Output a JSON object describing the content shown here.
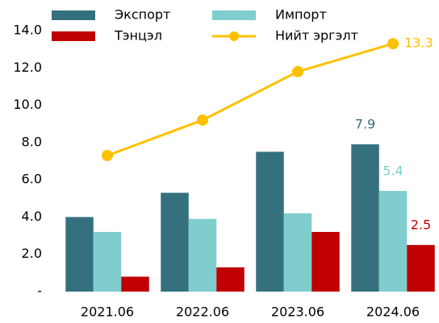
{
  "chart_data": {
    "type": "bar",
    "categories": [
      "2021.06",
      "2022.06",
      "2023.06",
      "2024.06"
    ],
    "series": [
      {
        "name": "Экспорт",
        "color": "#35707e",
        "type": "bar",
        "values": [
          4.0,
          5.3,
          7.5,
          7.9
        ],
        "value_labels": [
          null,
          null,
          null,
          "7.9"
        ]
      },
      {
        "name": "Импорт",
        "color": "#7fcdcd",
        "type": "bar",
        "values": [
          3.2,
          3.9,
          4.2,
          5.4
        ],
        "value_labels": [
          null,
          null,
          null,
          "5.4"
        ]
      },
      {
        "name": "Тэнцэл",
        "color": "#c00000",
        "type": "bar",
        "values": [
          0.8,
          1.3,
          3.2,
          2.5
        ],
        "value_labels": [
          null,
          null,
          null,
          "2.5"
        ]
      },
      {
        "name": "Нийт эргэлт",
        "color": "#ffc000",
        "type": "line",
        "values": [
          7.3,
          9.2,
          11.8,
          13.3
        ],
        "value_labels": [
          null,
          null,
          null,
          "13.3"
        ]
      }
    ],
    "ylim": [
      0,
      14
    ],
    "yticks": [
      {
        "value": 0,
        "label": "-"
      },
      {
        "value": 2,
        "label": "2.0"
      },
      {
        "value": 4,
        "label": "4.0"
      },
      {
        "value": 6,
        "label": "6.0"
      },
      {
        "value": 8,
        "label": "8.0"
      },
      {
        "value": 10,
        "label": "10.0"
      },
      {
        "value": 12,
        "label": "12.0"
      },
      {
        "value": 14,
        "label": "14.0"
      }
    ],
    "grid": false,
    "legend": "top"
  }
}
